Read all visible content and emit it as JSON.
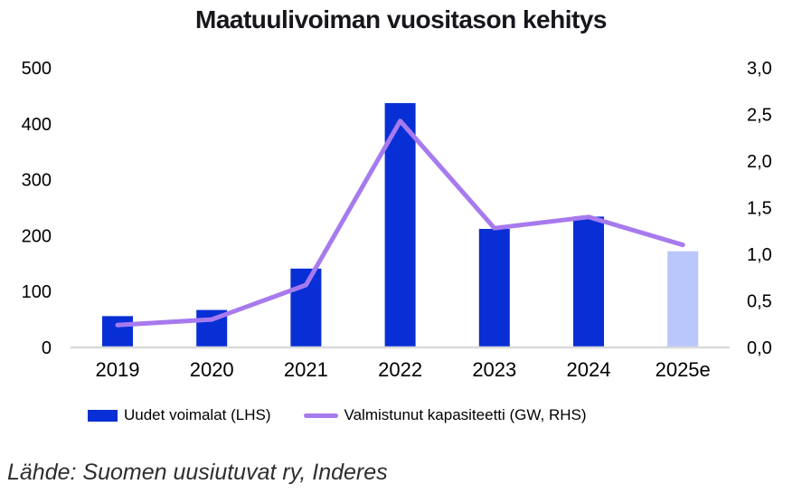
{
  "title": "Maatuulivoiman vuositason kehitys",
  "source_note": "Lähde: Suomen uusiutuvat ry, Inderes",
  "legend": {
    "bars_label": "Uudet voimalat (LHS)",
    "line_label": "Valmistunut kapasiteetti (GW, RHS)"
  },
  "chart_data": {
    "type": "bar+line combo",
    "title": "Maatuulivoiman vuositason kehitys",
    "categories": [
      "2019",
      "2020",
      "2021",
      "2022",
      "2023",
      "2024",
      "2025e"
    ],
    "series": [
      {
        "name": "Uudet voimalat (LHS)",
        "type": "bar",
        "axis": "left",
        "values": [
          56,
          67,
          141,
          437,
          212,
          234,
          172
        ]
      },
      {
        "name": "Valmistunut kapasiteetti (GW, RHS)",
        "type": "line",
        "axis": "right",
        "values": [
          0.24,
          0.3,
          0.67,
          2.43,
          1.28,
          1.4,
          1.1
        ]
      }
    ],
    "left_axis": {
      "ticks": [
        0,
        100,
        200,
        300,
        400,
        500
      ],
      "range": [
        0,
        500
      ]
    },
    "right_axis": {
      "ticks": [
        0,
        0.5,
        1.0,
        1.5,
        2.0,
        2.5,
        3.0
      ],
      "tick_labels": [
        "0,0",
        "0,5",
        "1,0",
        "1,5",
        "2,0",
        "2,5",
        "3,0"
      ],
      "range": [
        0,
        3.0
      ]
    },
    "forecast_category": "2025e",
    "grid": false,
    "legend_position": "bottom",
    "colors": {
      "bar": "#082FD6",
      "bar_forecast": "#BAC7FC",
      "line": "#A77AEE",
      "axis_line": "#D9D9D9",
      "text": "#000000"
    }
  }
}
